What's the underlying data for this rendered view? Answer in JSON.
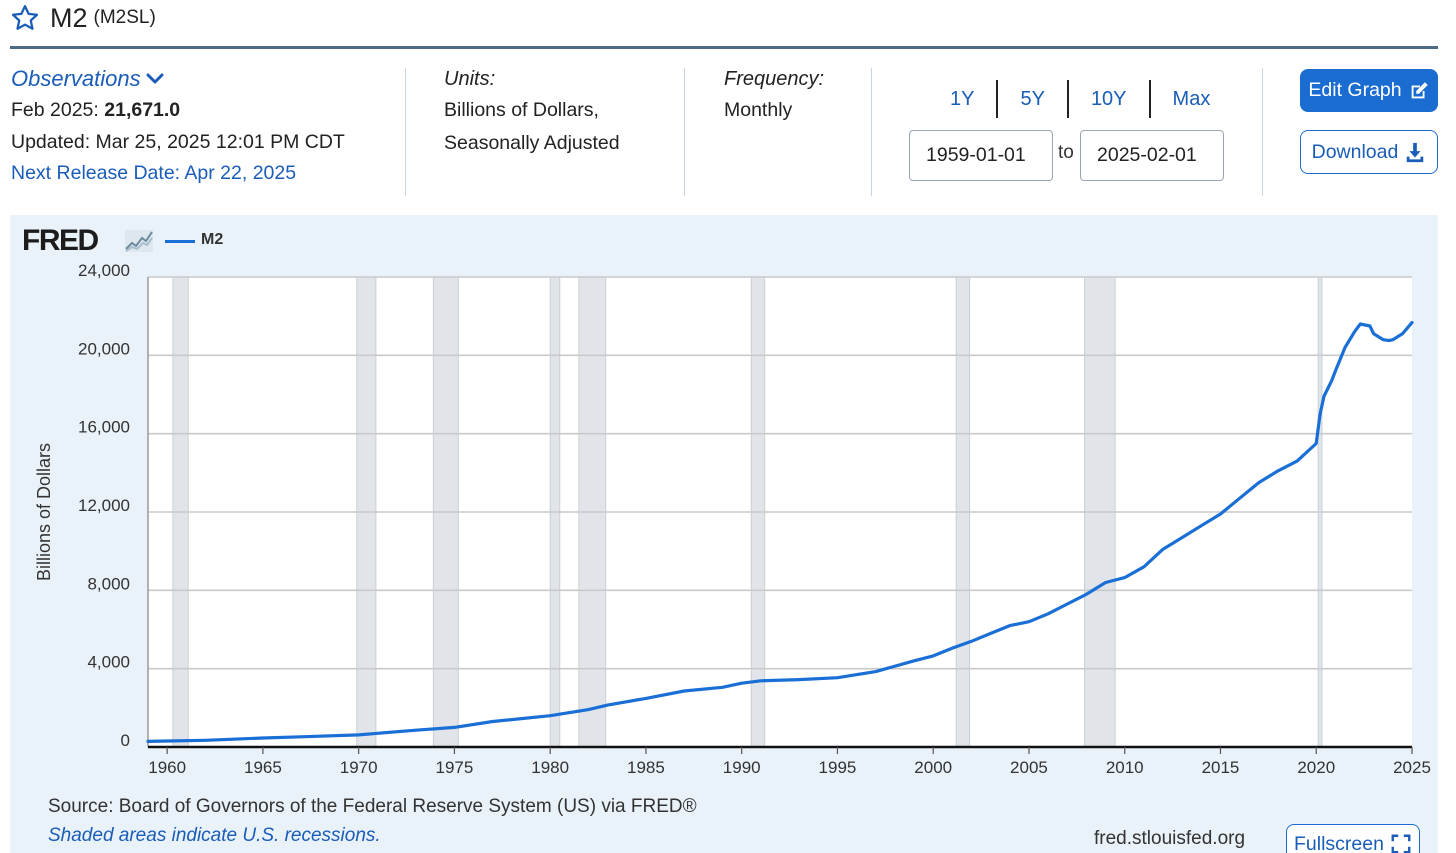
{
  "header": {
    "title": "M2",
    "series_id": "(M2SL)"
  },
  "observations": {
    "toggle_label": "Observations",
    "latest_prefix": "Feb 2025:",
    "latest_value": "21,671.0",
    "updated": "Updated: Mar 25, 2025 12:01 PM CDT",
    "next_release": "Next Release Date: Apr 22, 2025"
  },
  "units": {
    "heading": "Units:",
    "line1": "Billions of Dollars,",
    "line2": "Seasonally Adjusted"
  },
  "frequency": {
    "heading": "Frequency:",
    "value": "Monthly"
  },
  "range": {
    "buttons": [
      "1Y",
      "5Y",
      "10Y",
      "Max"
    ],
    "start": "1959-01-01",
    "to_label": "to",
    "end": "2025-02-01"
  },
  "actions": {
    "edit_label": "Edit Graph",
    "download_label": "Download",
    "fullscreen_label": "Fullscreen"
  },
  "footer": {
    "source": "Source: Board of Governors of the Federal Reserve System (US) via FRED®",
    "shaded_note": "Shaded areas indicate U.S. recessions.",
    "site": "fred.stlouisfed.org"
  },
  "logo_text": "FRED",
  "colors": {
    "accent": "#1a6cd1",
    "line": "#1a6fd6",
    "recession": "#e1e5ea",
    "panel": "#e9f1f9"
  },
  "chart_data": {
    "type": "line",
    "title": "",
    "xlabel": "",
    "ylabel": "Billions of Dollars",
    "legend_position": "top-left",
    "grid": true,
    "xlim": [
      1959.0,
      2025.0
    ],
    "ylim": [
      0,
      24000
    ],
    "x_ticks": [
      "1960",
      "1965",
      "1970",
      "1975",
      "1980",
      "1985",
      "1990",
      "1995",
      "2000",
      "2005",
      "2010",
      "2015",
      "2020",
      "2025"
    ],
    "y_ticks": [
      "0",
      "4,000",
      "8,000",
      "12,000",
      "16,000",
      "20,000",
      "24,000"
    ],
    "recessions": [
      [
        1960.3,
        1961.1
      ],
      [
        1969.9,
        1970.9
      ],
      [
        1973.9,
        1975.2
      ],
      [
        1980.0,
        1980.5
      ],
      [
        1981.5,
        1982.9
      ],
      [
        1990.5,
        1991.2
      ],
      [
        2001.2,
        2001.9
      ],
      [
        2007.9,
        2009.5
      ],
      [
        2020.1,
        2020.3
      ]
    ],
    "series": [
      {
        "name": "M2",
        "x": [
          1959.0,
          1960.0,
          1962.0,
          1965.0,
          1967.0,
          1970.0,
          1971.0,
          1973.0,
          1975.0,
          1977.0,
          1980.0,
          1982.0,
          1983.0,
          1985.0,
          1987.0,
          1989.0,
          1990.0,
          1991.0,
          1993.0,
          1995.0,
          1997.0,
          1999.0,
          2000.0,
          2001.0,
          2002.0,
          2003.0,
          2004.0,
          2005.0,
          2006.0,
          2007.0,
          2008.0,
          2009.0,
          2010.0,
          2011.0,
          2012.0,
          2013.0,
          2014.0,
          2015.0,
          2016.0,
          2017.0,
          2018.0,
          2019.0,
          2020.0,
          2020.2,
          2020.4,
          2020.8,
          2021.0,
          2021.5,
          2022.0,
          2022.3,
          2022.8,
          2023.0,
          2023.5,
          2023.8,
          2024.0,
          2024.5,
          2025.0
        ],
        "values": [
          286,
          305,
          340,
          460,
          520,
          620,
          700,
          860,
          1000,
          1300,
          1600,
          1910,
          2140,
          2480,
          2860,
          3050,
          3260,
          3380,
          3440,
          3540,
          3850,
          4400,
          4650,
          5050,
          5400,
          5800,
          6200,
          6400,
          6800,
          7300,
          7800,
          8400,
          8650,
          9200,
          10100,
          10700,
          11300,
          11900,
          12700,
          13500,
          14100,
          14600,
          15500,
          17000,
          17900,
          18700,
          19200,
          20400,
          21200,
          21600,
          21500,
          21100,
          20800,
          20750,
          20800,
          21100,
          21671
        ]
      }
    ]
  }
}
